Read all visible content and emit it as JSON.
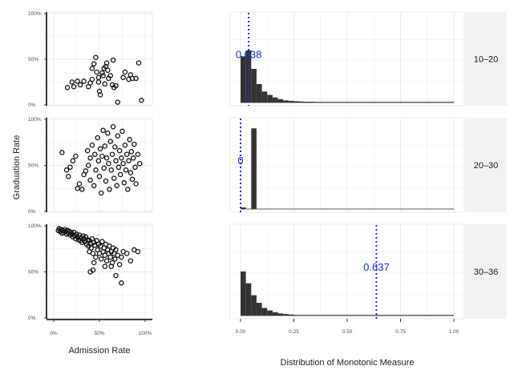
{
  "chart_data": {
    "type": "faceted-scatter-histogram",
    "rows": [
      "10–20",
      "20–30",
      "30–36"
    ],
    "scatter": {
      "xlabel": "Admission Rate",
      "ylabel": "Graduation Rate",
      "xlim": [
        0,
        1
      ],
      "ylim": [
        0,
        1
      ],
      "x_ticks": [
        "0%",
        "50%",
        "100%"
      ],
      "y_ticks": [
        "0%",
        "50%",
        "100%"
      ],
      "panels": [
        {
          "row": "10–20",
          "points": [
            [
              0.15,
              0.19
            ],
            [
              0.2,
              0.25
            ],
            [
              0.22,
              0.2
            ],
            [
              0.26,
              0.26
            ],
            [
              0.29,
              0.22
            ],
            [
              0.33,
              0.26
            ],
            [
              0.38,
              0.2
            ],
            [
              0.4,
              0.24
            ],
            [
              0.42,
              0.28
            ],
            [
              0.42,
              0.4
            ],
            [
              0.44,
              0.45
            ],
            [
              0.46,
              0.52
            ],
            [
              0.47,
              0.36
            ],
            [
              0.49,
              0.25
            ],
            [
              0.49,
              0.3
            ],
            [
              0.5,
              0.15
            ],
            [
              0.51,
              0.11
            ],
            [
              0.53,
              0.35
            ],
            [
              0.54,
              0.32
            ],
            [
              0.55,
              0.4
            ],
            [
              0.56,
              0.23
            ],
            [
              0.57,
              0.42
            ],
            [
              0.58,
              0.46
            ],
            [
              0.59,
              0.38
            ],
            [
              0.6,
              0.29
            ],
            [
              0.62,
              0.32
            ],
            [
              0.64,
              0.22
            ],
            [
              0.65,
              0.49
            ],
            [
              0.66,
              0.19
            ],
            [
              0.68,
              0.21
            ],
            [
              0.7,
              0.03
            ],
            [
              0.76,
              0.3
            ],
            [
              0.78,
              0.36
            ],
            [
              0.82,
              0.28
            ],
            [
              0.84,
              0.33
            ],
            [
              0.86,
              0.29
            ],
            [
              0.9,
              0.29
            ],
            [
              0.93,
              0.46
            ],
            [
              0.96,
              0.05
            ]
          ]
        },
        {
          "row": "20–30",
          "points": [
            [
              0.09,
              0.64
            ],
            [
              0.14,
              0.45
            ],
            [
              0.16,
              0.38
            ],
            [
              0.18,
              0.48
            ],
            [
              0.21,
              0.55
            ],
            [
              0.24,
              0.6
            ],
            [
              0.26,
              0.25
            ],
            [
              0.28,
              0.3
            ],
            [
              0.31,
              0.24
            ],
            [
              0.33,
              0.4
            ],
            [
              0.35,
              0.44
            ],
            [
              0.37,
              0.66
            ],
            [
              0.38,
              0.5
            ],
            [
              0.4,
              0.34
            ],
            [
              0.4,
              0.58
            ],
            [
              0.42,
              0.72
            ],
            [
              0.44,
              0.28
            ],
            [
              0.45,
              0.62
            ],
            [
              0.46,
              0.45
            ],
            [
              0.48,
              0.8
            ],
            [
              0.49,
              0.55
            ],
            [
              0.5,
              0.38
            ],
            [
              0.51,
              0.68
            ],
            [
              0.52,
              0.2
            ],
            [
              0.53,
              0.6
            ],
            [
              0.54,
              0.88
            ],
            [
              0.55,
              0.47
            ],
            [
              0.56,
              0.71
            ],
            [
              0.57,
              0.33
            ],
            [
              0.58,
              0.58
            ],
            [
              0.59,
              0.85
            ],
            [
              0.6,
              0.52
            ],
            [
              0.61,
              0.24
            ],
            [
              0.62,
              0.76
            ],
            [
              0.63,
              0.45
            ],
            [
              0.64,
              0.62
            ],
            [
              0.65,
              0.92
            ],
            [
              0.66,
              0.36
            ],
            [
              0.67,
              0.7
            ],
            [
              0.68,
              0.55
            ],
            [
              0.69,
              0.28
            ],
            [
              0.7,
              0.82
            ],
            [
              0.71,
              0.48
            ],
            [
              0.72,
              0.66
            ],
            [
              0.73,
              0.4
            ],
            [
              0.74,
              0.58
            ],
            [
              0.75,
              0.87
            ],
            [
              0.76,
              0.52
            ],
            [
              0.77,
              0.31
            ],
            [
              0.78,
              0.72
            ],
            [
              0.79,
              0.45
            ],
            [
              0.8,
              0.62
            ],
            [
              0.81,
              0.24
            ],
            [
              0.82,
              0.55
            ],
            [
              0.83,
              0.78
            ],
            [
              0.84,
              0.42
            ],
            [
              0.85,
              0.65
            ],
            [
              0.86,
              0.35
            ],
            [
              0.87,
              0.58
            ],
            [
              0.88,
              0.73
            ],
            [
              0.89,
              0.48
            ],
            [
              0.9,
              0.3
            ],
            [
              0.92,
              0.62
            ],
            [
              0.94,
              0.52
            ]
          ]
        },
        {
          "row": "30–36",
          "points": [
            [
              0.05,
              0.95
            ],
            [
              0.06,
              0.97
            ],
            [
              0.07,
              0.94
            ],
            [
              0.08,
              0.96
            ],
            [
              0.09,
              0.92
            ],
            [
              0.1,
              0.95
            ],
            [
              0.11,
              0.93
            ],
            [
              0.12,
              0.96
            ],
            [
              0.13,
              0.94
            ],
            [
              0.14,
              0.91
            ],
            [
              0.15,
              0.95
            ],
            [
              0.16,
              0.92
            ],
            [
              0.17,
              0.94
            ],
            [
              0.18,
              0.9
            ],
            [
              0.19,
              0.93
            ],
            [
              0.2,
              0.91
            ],
            [
              0.21,
              0.88
            ],
            [
              0.22,
              0.93
            ],
            [
              0.23,
              0.89
            ],
            [
              0.24,
              0.86
            ],
            [
              0.25,
              0.91
            ],
            [
              0.26,
              0.88
            ],
            [
              0.27,
              0.85
            ],
            [
              0.28,
              0.9
            ],
            [
              0.29,
              0.84
            ],
            [
              0.3,
              0.87
            ],
            [
              0.31,
              0.82
            ],
            [
              0.32,
              0.89
            ],
            [
              0.33,
              0.86
            ],
            [
              0.34,
              0.83
            ],
            [
              0.35,
              0.88
            ],
            [
              0.36,
              0.8
            ],
            [
              0.37,
              0.85
            ],
            [
              0.38,
              0.78
            ],
            [
              0.39,
              0.84
            ],
            [
              0.4,
              0.81
            ],
            [
              0.41,
              0.76
            ],
            [
              0.42,
              0.86
            ],
            [
              0.43,
              0.7
            ],
            [
              0.44,
              0.82
            ],
            [
              0.45,
              0.79
            ],
            [
              0.46,
              0.66
            ],
            [
              0.47,
              0.84
            ],
            [
              0.48,
              0.74
            ],
            [
              0.49,
              0.8
            ],
            [
              0.5,
              0.7
            ],
            [
              0.51,
              0.78
            ],
            [
              0.52,
              0.64
            ],
            [
              0.53,
              0.83
            ],
            [
              0.54,
              0.72
            ],
            [
              0.55,
              0.76
            ],
            [
              0.56,
              0.68
            ],
            [
              0.57,
              0.8
            ],
            [
              0.58,
              0.62
            ],
            [
              0.59,
              0.74
            ],
            [
              0.6,
              0.7
            ],
            [
              0.61,
              0.78
            ],
            [
              0.62,
              0.66
            ],
            [
              0.63,
              0.72
            ],
            [
              0.64,
              0.6
            ],
            [
              0.65,
              0.76
            ],
            [
              0.66,
              0.7
            ],
            [
              0.67,
              0.64
            ],
            [
              0.68,
              0.74
            ],
            [
              0.7,
              0.68
            ],
            [
              0.72,
              0.58
            ],
            [
              0.74,
              0.66
            ],
            [
              0.76,
              0.72
            ],
            [
              0.8,
              0.7
            ],
            [
              0.84,
              0.62
            ],
            [
              0.88,
              0.74
            ],
            [
              0.92,
              0.72
            ],
            [
              0.39,
              0.72
            ],
            [
              0.44,
              0.6
            ],
            [
              0.56,
              0.56
            ],
            [
              0.63,
              0.56
            ],
            [
              0.68,
              0.46
            ],
            [
              0.74,
              0.38
            ],
            [
              0.43,
              0.52
            ],
            [
              0.4,
              0.5
            ]
          ]
        }
      ]
    },
    "histogram": {
      "xlabel": "Distribution of Monotonic Measure",
      "xlim": [
        0,
        1
      ],
      "x_ticks": [
        "0.00",
        "0.25",
        "0.50",
        "0.75",
        "1.00"
      ],
      "bin_width": 0.025,
      "panels": [
        {
          "row": "10–20",
          "vline": 0.038,
          "vline_label": "0.038",
          "counts": [
            0.55,
            0.62,
            0.4,
            0.22,
            0.13,
            0.09,
            0.06,
            0.04,
            0.025,
            0.02,
            0.015,
            0.012,
            0.01,
            0.01,
            0.008,
            0.006,
            0.006,
            0.005,
            0.005,
            0.004,
            0.004,
            0.004,
            0.003,
            0.003,
            0.003,
            0.003,
            0.003,
            0.003,
            0.003,
            0.003,
            0.003,
            0.003,
            0.003,
            0.003,
            0.003,
            0.003,
            0.003,
            0.003,
            0.003,
            0.003
          ]
        },
        {
          "row": "20–30",
          "vline": 0,
          "vline_label": "0",
          "counts": [
            0.02,
            0.0,
            0.95,
            0.0,
            0.0,
            0.0,
            0.0,
            0.0,
            0.0,
            0.0,
            0.0,
            0.0,
            0.0,
            0.0,
            0.0,
            0.0,
            0.0,
            0.0,
            0.0,
            0.0,
            0.0,
            0.0,
            0.0,
            0.0,
            0.0,
            0.0,
            0.0,
            0.0,
            0.0,
            0.0,
            0.0,
            0.0,
            0.0,
            0.0,
            0.0,
            0.0,
            0.0,
            0.0,
            0.0,
            0.0
          ]
        },
        {
          "row": "30–36",
          "vline": 0.637,
          "vline_label": "0.637",
          "counts": [
            0.52,
            0.38,
            0.24,
            0.15,
            0.09,
            0.06,
            0.04,
            0.025,
            0.018,
            0.012,
            0.008,
            0.006,
            0.005,
            0.004,
            0.003,
            0.003,
            0.003,
            0.003,
            0.003,
            0.003,
            0.003,
            0.003,
            0.003,
            0.003,
            0.003,
            0.003,
            0.003,
            0.003,
            0.003,
            0.003,
            0.003,
            0.003,
            0.003,
            0.003,
            0.003,
            0.003,
            0.003,
            0.003,
            0.003,
            0.003
          ]
        }
      ]
    },
    "colors": {
      "points": "#111111",
      "bars": "#333333",
      "vline": "#1a2ed8",
      "strip": "#f2f2f2",
      "grid": "#ebebeb"
    }
  }
}
